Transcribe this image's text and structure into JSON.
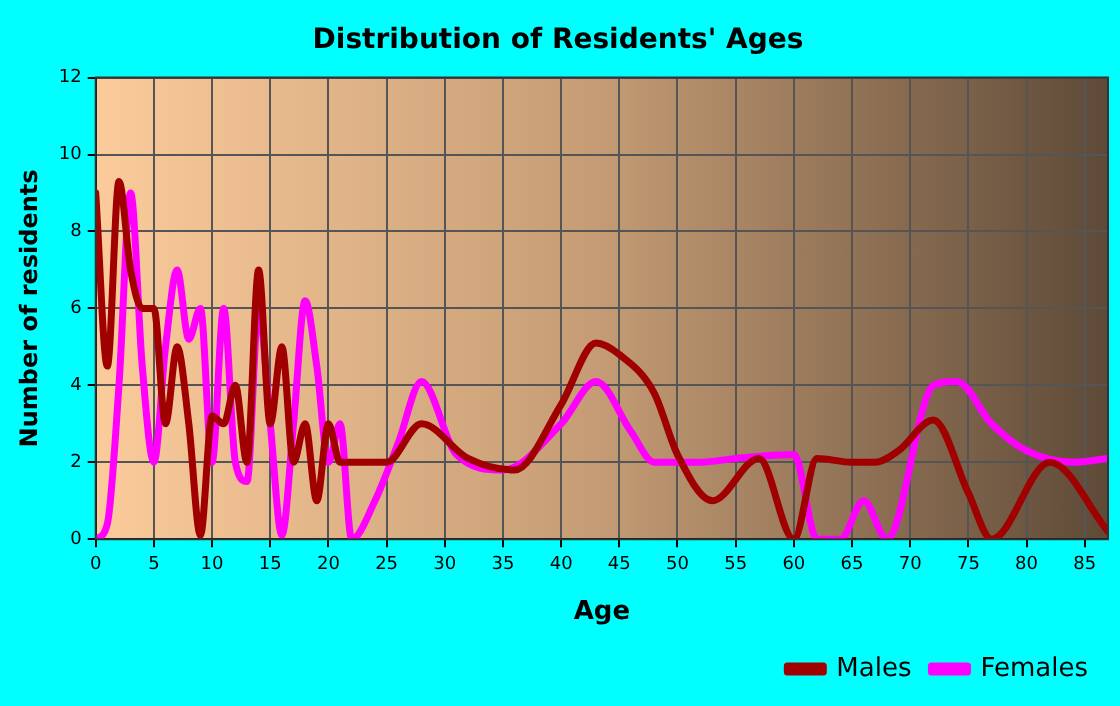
{
  "chart_data": {
    "type": "line",
    "title": "Distribution of Residents' Ages",
    "xlabel": "Age",
    "ylabel": "Number of residents",
    "xlim": [
      0,
      87
    ],
    "xticks": [
      0,
      5,
      10,
      15,
      20,
      25,
      30,
      35,
      40,
      45,
      50,
      55,
      60,
      65,
      70,
      75,
      80,
      85
    ],
    "ylim": [
      0,
      12
    ],
    "yticks": [
      0,
      2,
      4,
      6,
      8,
      10,
      12
    ],
    "grid": true,
    "legend": "bottom right",
    "marker": "none",
    "line_style": "solid",
    "series": [
      {
        "name": "Males",
        "color": "#a00000",
        "x": [
          0,
          1,
          2,
          3,
          4,
          5,
          6,
          7,
          8,
          9,
          10,
          11,
          12,
          13,
          14,
          15,
          16,
          17,
          18,
          19,
          20,
          21,
          22,
          25,
          28,
          32,
          36,
          40,
          43,
          45,
          48,
          50,
          53,
          57,
          60,
          62,
          65,
          67,
          69,
          72,
          75,
          77,
          82,
          87
        ],
        "values": [
          9,
          4.5,
          9.3,
          7,
          6,
          6,
          3,
          5,
          3,
          0.1,
          3.2,
          3,
          4,
          2,
          7,
          3,
          5,
          2,
          3,
          1,
          3,
          2,
          2,
          2,
          3,
          2.1,
          1.8,
          3.5,
          5.1,
          4.8,
          3.8,
          2.2,
          1,
          2.1,
          0,
          2.1,
          2,
          2,
          2.3,
          3.1,
          1.2,
          0,
          2,
          0.2
        ]
      },
      {
        "name": "Females",
        "color": "#ff00ff",
        "x": [
          0,
          1,
          2,
          3,
          4,
          5,
          6,
          7,
          8,
          9,
          10,
          11,
          12,
          13,
          14,
          15,
          16,
          17,
          18,
          19,
          20,
          21,
          22,
          24,
          26,
          28,
          31,
          35,
          40,
          43,
          46,
          48,
          52,
          55,
          60,
          62,
          64,
          66,
          68,
          72,
          74,
          77,
          80,
          84,
          87
        ],
        "values": [
          0,
          0.4,
          4,
          9,
          4.5,
          2,
          5,
          7,
          5.2,
          6,
          2,
          6,
          2,
          1.5,
          6,
          3,
          0.1,
          3,
          6.2,
          4.5,
          2,
          3,
          0,
          1,
          2.5,
          4.1,
          2.2,
          1.8,
          3,
          4.1,
          2.8,
          2,
          2,
          2.1,
          2.2,
          0,
          0,
          1,
          0,
          4,
          4.1,
          3,
          2.3,
          2,
          2.1
        ]
      }
    ]
  }
}
